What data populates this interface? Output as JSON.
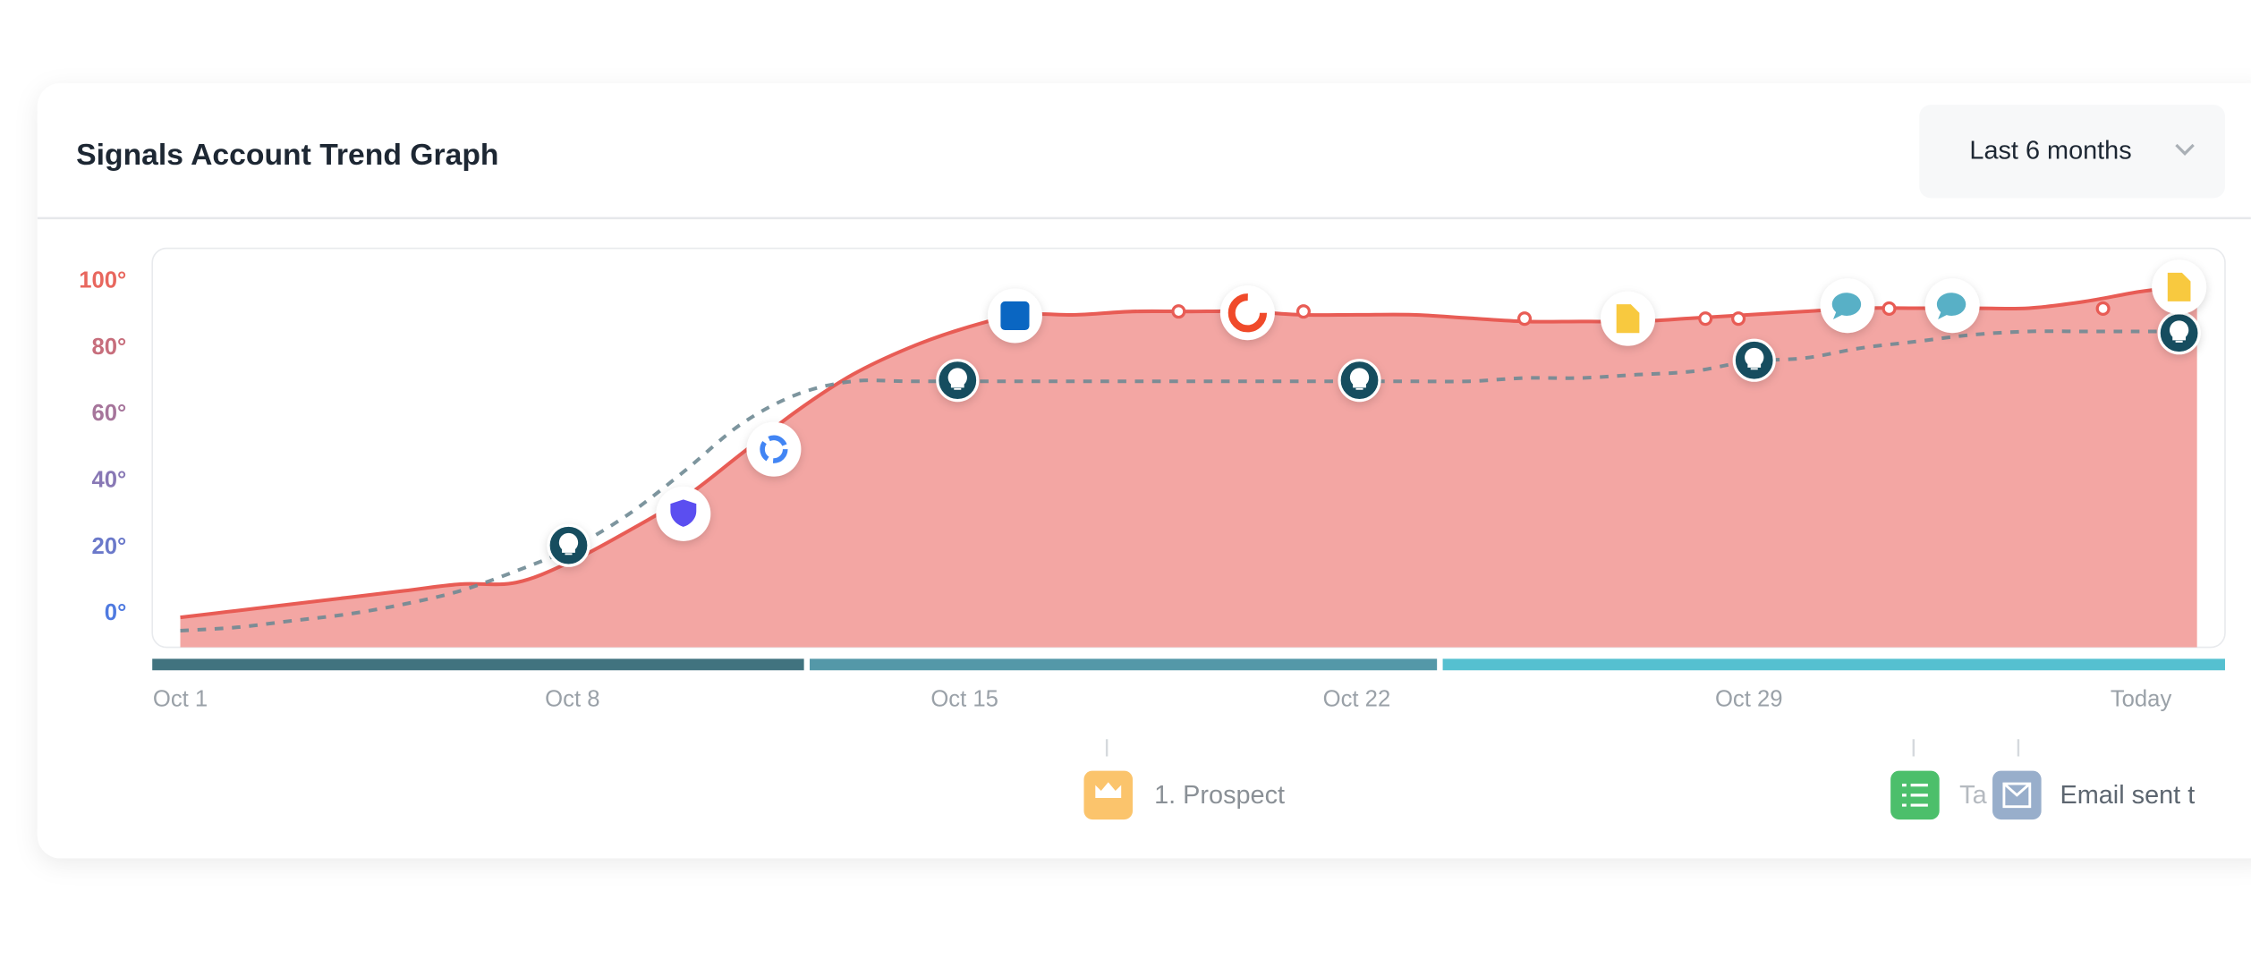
{
  "header": {
    "title": "Signals Account Trend Graph",
    "range": "Last 6 months"
  },
  "chart_data": {
    "type": "area",
    "categories": [
      "Oct 1",
      null,
      null,
      null,
      null,
      null,
      null,
      "Oct 8",
      null,
      null,
      null,
      null,
      null,
      null,
      "Oct 15",
      null,
      null,
      null,
      null,
      null,
      null,
      "Oct 22",
      null,
      null,
      null,
      null,
      null,
      null,
      "Oct 29",
      null,
      null,
      null,
      null,
      null,
      null,
      "Today",
      null
    ],
    "series": [
      {
        "color": "#e85c55",
        "values": [
          -1,
          1,
          3,
          5,
          7,
          9,
          9.5,
          16,
          25,
          35,
          48,
          61,
          72,
          80,
          86,
          90,
          90,
          91,
          91,
          91,
          90,
          90,
          90,
          89,
          88,
          88,
          88,
          89,
          90,
          91,
          92,
          92,
          92,
          92,
          94,
          97,
          99
        ]
      },
      {
        "color": "#6f8a93",
        "values": [
          -5,
          -4,
          -2,
          0,
          3,
          7,
          13,
          20,
          30,
          43,
          57,
          66,
          70,
          70,
          70,
          70,
          70,
          70,
          70,
          70,
          70,
          70,
          70,
          70,
          71,
          71,
          72,
          73,
          76,
          77,
          80,
          82,
          84,
          85,
          85,
          85,
          85
        ]
      }
    ],
    "ylim": [
      -10,
      110
    ],
    "yticks": [
      {
        "value": 0,
        "label": "0°"
      },
      {
        "value": 20,
        "label": "20°"
      },
      {
        "value": 40,
        "label": "40°"
      },
      {
        "value": 60,
        "label": "60°"
      },
      {
        "value": 80,
        "label": "80°"
      },
      {
        "value": 100,
        "label": "100°"
      }
    ],
    "grid": false
  },
  "timeline_events": [
    {
      "label": "1. Prospect"
    },
    {
      "label": "Ta"
    },
    {
      "label": "Email sent t"
    }
  ]
}
